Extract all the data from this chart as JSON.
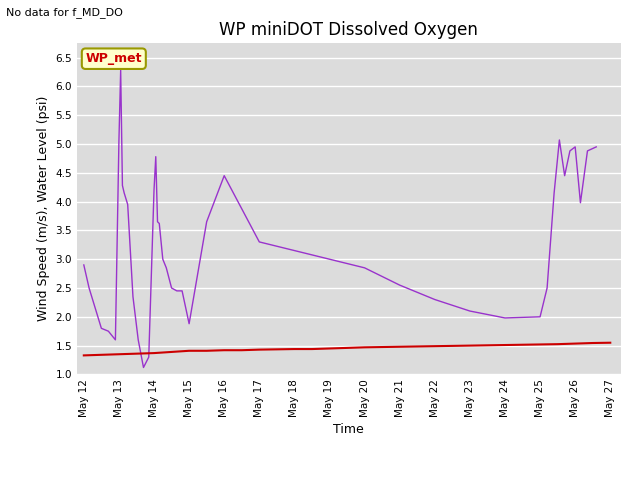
{
  "title": "WP miniDOT Dissolved Oxygen",
  "top_left_text": "No data for f_MD_DO",
  "ylabel": "Wind Speed (m/s), Water Level (psi)",
  "xlabel": "Time",
  "annotation_box": "WP_met",
  "ylim": [
    1.0,
    6.75
  ],
  "fig_bg_color": "#ffffff",
  "plot_bg": "#dcdcdc",
  "wp_ws_color": "#9933cc",
  "f_wl_color": "#cc0000",
  "wp_ws_x": [
    12.0,
    12.15,
    12.3,
    12.5,
    12.7,
    12.9,
    13.0,
    13.05,
    13.1,
    13.15,
    13.25,
    13.4,
    13.55,
    13.7,
    13.85,
    14.0,
    14.05,
    14.1,
    14.15,
    14.25,
    14.35,
    14.5,
    14.65,
    14.8,
    15.0,
    15.5,
    16.0,
    17.0,
    18.0,
    19.0,
    20.0,
    21.0,
    22.0,
    23.0,
    24.0,
    25.0,
    25.2,
    25.4,
    25.55,
    25.7,
    25.85,
    26.0,
    26.15,
    26.35,
    26.6
  ],
  "wp_ws_y": [
    2.9,
    2.5,
    2.2,
    1.8,
    1.75,
    1.6,
    5.05,
    6.28,
    4.28,
    4.15,
    3.95,
    2.35,
    1.6,
    1.12,
    1.3,
    4.2,
    4.78,
    3.65,
    3.62,
    3.0,
    2.85,
    2.5,
    2.45,
    2.45,
    1.88,
    3.65,
    4.45,
    3.3,
    3.15,
    3.0,
    2.85,
    2.55,
    2.3,
    2.1,
    1.98,
    2.0,
    2.5,
    4.15,
    5.07,
    4.45,
    4.88,
    4.95,
    3.98,
    4.88,
    4.95
  ],
  "f_wl_x": [
    12,
    12.5,
    13,
    13.5,
    14,
    14.5,
    15,
    15.5,
    16,
    16.5,
    17,
    17.5,
    18,
    18.5,
    19,
    19.5,
    20,
    20.5,
    21,
    21.5,
    22,
    22.5,
    23,
    23.5,
    24,
    24.5,
    25,
    25.5,
    26,
    26.5,
    27
  ],
  "f_wl_y": [
    1.33,
    1.34,
    1.35,
    1.36,
    1.37,
    1.39,
    1.41,
    1.41,
    1.42,
    1.42,
    1.43,
    1.435,
    1.44,
    1.44,
    1.45,
    1.46,
    1.47,
    1.475,
    1.48,
    1.485,
    1.49,
    1.495,
    1.5,
    1.505,
    1.51,
    1.515,
    1.52,
    1.525,
    1.535,
    1.545,
    1.55
  ],
  "xtick_labels": [
    "May 12",
    "May 13",
    "May 14",
    "May 15",
    "May 16",
    "May 17",
    "May 18",
    "May 19",
    "May 20",
    "May 21",
    "May 22",
    "May 23",
    "May 24",
    "May 25",
    "May 26",
    "May 27"
  ],
  "xtick_positions": [
    12,
    13,
    14,
    15,
    16,
    17,
    18,
    19,
    20,
    21,
    22,
    23,
    24,
    25,
    26,
    27
  ],
  "ytick_positions": [
    1.0,
    1.5,
    2.0,
    2.5,
    3.0,
    3.5,
    4.0,
    4.5,
    5.0,
    5.5,
    6.0,
    6.5
  ],
  "title_fontsize": 12,
  "tick_fontsize": 7.5,
  "label_fontsize": 9,
  "legend_fontsize": 9
}
